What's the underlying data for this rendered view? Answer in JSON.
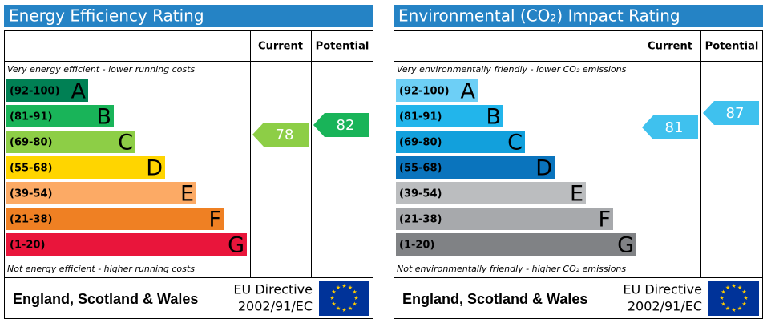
{
  "panels": [
    {
      "title": "Energy Efficiency Rating",
      "current_label": "Current",
      "potential_label": "Potential",
      "top_note": "Very energy efficient - lower running costs",
      "bottom_note": "Not energy efficient - higher running costs",
      "bands": [
        {
          "range": "(92-100)",
          "letter": "A",
          "color": "#008054"
        },
        {
          "range": "(81-91)",
          "letter": "B",
          "color": "#19b459"
        },
        {
          "range": "(69-80)",
          "letter": "C",
          "color": "#8dce46"
        },
        {
          "range": "(55-68)",
          "letter": "D",
          "color": "#ffd500"
        },
        {
          "range": "(39-54)",
          "letter": "E",
          "color": "#fcaa65"
        },
        {
          "range": "(21-38)",
          "letter": "F",
          "color": "#ef8023"
        },
        {
          "range": "(1-20)",
          "letter": "G",
          "color": "#e9153b"
        }
      ],
      "current": {
        "value": 78,
        "color": "#8dce46"
      },
      "potential": {
        "value": 82,
        "color": "#19b459"
      },
      "region": "England, Scotland & Wales",
      "directive": [
        "EU Directive",
        "2002/91/EC"
      ]
    },
    {
      "title": "Environmental (CO₂) Impact Rating",
      "current_label": "Current",
      "potential_label": "Potential",
      "top_note": "Very environmentally friendly - lower CO₂ emissions",
      "bottom_note": "Not environmentally friendly - higher CO₂ emissions",
      "bands": [
        {
          "range": "(92-100)",
          "letter": "A",
          "color": "#6dcff6"
        },
        {
          "range": "(81-91)",
          "letter": "B",
          "color": "#22b5eb"
        },
        {
          "range": "(69-80)",
          "letter": "C",
          "color": "#12a0dc"
        },
        {
          "range": "(55-68)",
          "letter": "D",
          "color": "#0a74bd"
        },
        {
          "range": "(39-54)",
          "letter": "E",
          "color": "#bbbdbf"
        },
        {
          "range": "(21-38)",
          "letter": "F",
          "color": "#a7a9ac"
        },
        {
          "range": "(1-20)",
          "letter": "G",
          "color": "#808285"
        }
      ],
      "current": {
        "value": 81,
        "color": "#3fc1ee"
      },
      "potential": {
        "value": 87,
        "color": "#3fc1ee"
      },
      "region": "England, Scotland & Wales",
      "directive": [
        "EU Directive",
        "2002/91/EC"
      ]
    }
  ]
}
